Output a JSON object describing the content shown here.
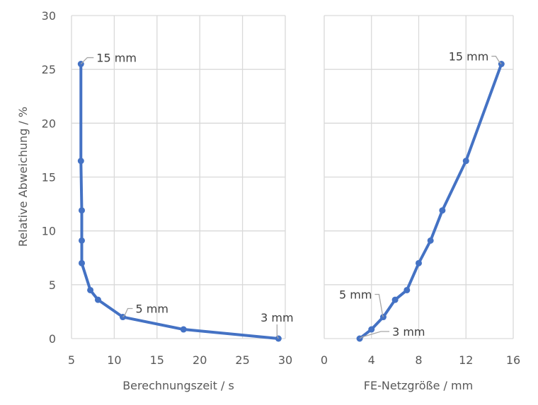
{
  "chart_data": [
    {
      "type": "line",
      "xlabel": "Berechnungszeit / s",
      "ylabel": "Relative Abweichung / %",
      "xlim": [
        5,
        30
      ],
      "ylim": [
        0,
        30
      ],
      "xticks": [
        5,
        10,
        15,
        20,
        25,
        30
      ],
      "yticks": [
        0,
        5,
        10,
        15,
        20,
        25,
        30
      ],
      "grid": true,
      "color": "#4472C4",
      "x": [
        6.1,
        6.1,
        6.2,
        6.2,
        6.2,
        7.2,
        8.1,
        11.0,
        18.1,
        29.2
      ],
      "y": [
        25.5,
        16.5,
        11.9,
        9.1,
        7.0,
        4.5,
        3.6,
        2.0,
        0.85,
        0
      ],
      "annotations": [
        {
          "index": 0,
          "text": "15 mm"
        },
        {
          "index": 7,
          "text": "5 mm"
        },
        {
          "index": 9,
          "text": "3 mm"
        }
      ]
    },
    {
      "type": "line",
      "xlabel": "FE-Netzgröße / mm",
      "ylabel": "",
      "xlim": [
        0,
        16
      ],
      "ylim": [
        0,
        30
      ],
      "xticks": [
        0,
        4,
        8,
        12,
        16
      ],
      "yticks": [
        0,
        5,
        10,
        15,
        20,
        25,
        30
      ],
      "grid": true,
      "color": "#4472C4",
      "x": [
        15,
        12,
        10,
        9,
        8,
        7,
        6,
        5,
        4,
        3
      ],
      "y": [
        25.5,
        16.5,
        11.9,
        9.1,
        7.0,
        4.5,
        3.6,
        2.0,
        0.85,
        0
      ],
      "annotations": [
        {
          "index": 0,
          "text": "15 mm"
        },
        {
          "index": 7,
          "text": "5 mm"
        },
        {
          "index": 9,
          "text": "3 mm"
        }
      ]
    }
  ]
}
